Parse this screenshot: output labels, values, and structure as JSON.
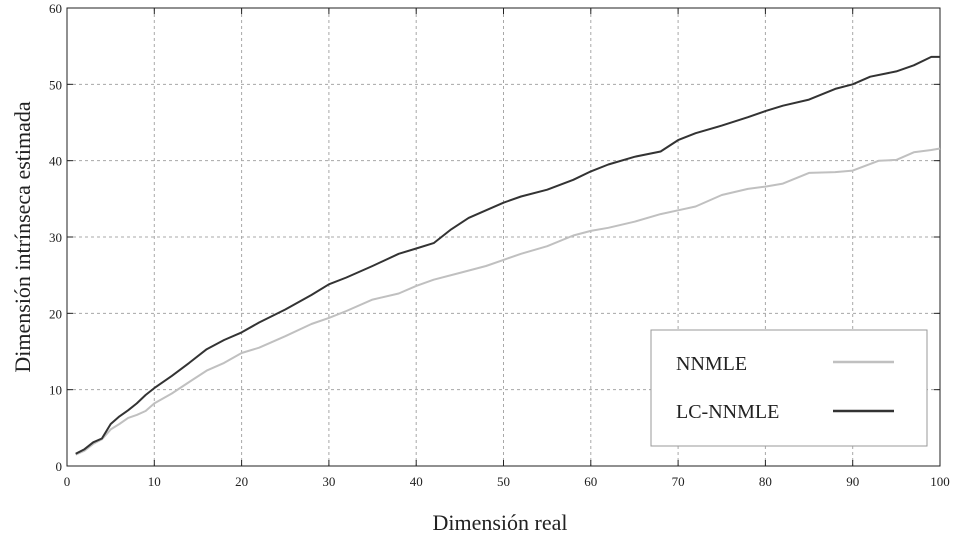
{
  "chart_data": {
    "type": "line",
    "xlabel": "Dimensión real",
    "ylabel": "Dimensión intrínseca estimada",
    "xlim": [
      0,
      100
    ],
    "ylim": [
      0,
      60
    ],
    "xticks": [
      0,
      10,
      20,
      30,
      40,
      50,
      60,
      70,
      80,
      90,
      100
    ],
    "yticks": [
      0,
      10,
      20,
      30,
      40,
      50,
      60
    ],
    "grid": true,
    "legend_position": "bottom-right",
    "series": [
      {
        "name": "NNMLE",
        "color": "#c0c0c0",
        "x": [
          1,
          2,
          3,
          4,
          5,
          6,
          7,
          8,
          9,
          10,
          12,
          14,
          16,
          18,
          20,
          22,
          25,
          28,
          30,
          32,
          35,
          38,
          40,
          42,
          45,
          48,
          50,
          52,
          55,
          58,
          60,
          62,
          65,
          68,
          70,
          72,
          75,
          78,
          80,
          82,
          85,
          88,
          90,
          93,
          95,
          97,
          99,
          100
        ],
        "values": [
          1.5,
          2.0,
          2.9,
          3.5,
          4.8,
          5.5,
          6.3,
          6.7,
          7.2,
          8.2,
          9.5,
          11.0,
          12.5,
          13.5,
          14.8,
          15.5,
          17.0,
          18.6,
          19.4,
          20.3,
          21.8,
          22.6,
          23.6,
          24.4,
          25.3,
          26.2,
          27.0,
          27.8,
          28.8,
          30.2,
          30.8,
          31.2,
          32.0,
          33.0,
          33.5,
          34.0,
          35.5,
          36.3,
          36.6,
          37.0,
          38.4,
          38.5,
          38.7,
          40.0,
          40.1,
          41.1,
          41.4,
          41.6
        ]
      },
      {
        "name": "LC-NNMLE",
        "color": "#333333",
        "x": [
          1,
          2,
          3,
          4,
          5,
          6,
          7,
          8,
          9,
          10,
          12,
          14,
          16,
          18,
          20,
          22,
          25,
          28,
          30,
          32,
          35,
          38,
          40,
          42,
          44,
          46,
          48,
          50,
          52,
          55,
          58,
          60,
          62,
          65,
          68,
          70,
          72,
          75,
          78,
          80,
          82,
          85,
          88,
          90,
          92,
          95,
          97,
          99,
          100
        ],
        "values": [
          1.6,
          2.2,
          3.1,
          3.6,
          5.5,
          6.5,
          7.3,
          8.2,
          9.3,
          10.2,
          11.8,
          13.5,
          15.3,
          16.5,
          17.5,
          18.8,
          20.5,
          22.4,
          23.8,
          24.7,
          26.2,
          27.8,
          28.5,
          29.2,
          31.0,
          32.5,
          33.5,
          34.5,
          35.3,
          36.2,
          37.5,
          38.6,
          39.5,
          40.5,
          41.2,
          42.7,
          43.6,
          44.6,
          45.7,
          46.5,
          47.2,
          48.0,
          49.4,
          50.0,
          51.0,
          51.7,
          52.5,
          53.6,
          53.6
        ]
      }
    ]
  }
}
